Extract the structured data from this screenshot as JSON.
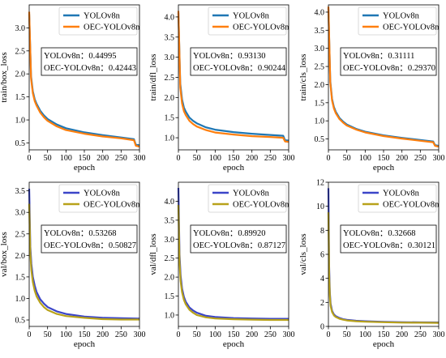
{
  "chart_data": [
    {
      "type": "line",
      "xlabel": "epoch",
      "ylabel": "train/box_loss",
      "xlim": [
        0,
        300
      ],
      "ylim": [
        0.35,
        3.5
      ],
      "xticks": [
        0,
        50,
        100,
        150,
        200,
        250,
        300
      ],
      "yticks": [
        0.5,
        1.0,
        1.5,
        2.0,
        2.5,
        3.0
      ],
      "yticks_text": [
        "0.5",
        "1.0",
        "1.5",
        "2.0",
        "2.5",
        "3.0"
      ],
      "legend_position": "top-right",
      "annotation": [
        "YOLOv8n：0.44995",
        "OEC-YOLOv8n：0.42443"
      ],
      "series": [
        {
          "name": "YOLOv8n",
          "color": "#1f77b4",
          "x": [
            0,
            5,
            10,
            15,
            20,
            30,
            40,
            50,
            75,
            100,
            150,
            200,
            250,
            285,
            290,
            300
          ],
          "y": [
            3.3,
            1.95,
            1.62,
            1.45,
            1.35,
            1.2,
            1.1,
            1.02,
            0.9,
            0.82,
            0.73,
            0.67,
            0.62,
            0.58,
            0.46,
            0.45
          ]
        },
        {
          "name": "OEC-YOLOv8n",
          "color": "#ff7f0e",
          "x": [
            0,
            5,
            10,
            15,
            20,
            30,
            40,
            50,
            75,
            100,
            150,
            200,
            250,
            285,
            290,
            300
          ],
          "y": [
            3.35,
            1.9,
            1.58,
            1.41,
            1.31,
            1.16,
            1.06,
            0.98,
            0.86,
            0.78,
            0.7,
            0.64,
            0.6,
            0.56,
            0.44,
            0.42
          ]
        }
      ]
    },
    {
      "type": "line",
      "xlabel": "epoch",
      "ylabel": "train/dfl_loss",
      "xlim": [
        0,
        300
      ],
      "ylim": [
        0.7,
        4.3
      ],
      "xticks": [
        0,
        50,
        100,
        150,
        200,
        250,
        300
      ],
      "yticks": [
        1.0,
        1.5,
        2.0,
        2.5,
        3.0,
        3.5,
        4.0
      ],
      "yticks_text": [
        "1.0",
        "1.5",
        "2.0",
        "2.5",
        "3.0",
        "3.5",
        "4.0"
      ],
      "legend_position": "top-right",
      "annotation": [
        "YOLOv8n：0.93130",
        "OEC-YOLOv8n：0.90244"
      ],
      "series": [
        {
          "name": "YOLOv8n",
          "color": "#1f77b4",
          "x": [
            0,
            5,
            10,
            15,
            20,
            30,
            40,
            50,
            75,
            100,
            150,
            200,
            250,
            285,
            290,
            300
          ],
          "y": [
            4.1,
            2.35,
            1.95,
            1.75,
            1.65,
            1.5,
            1.42,
            1.36,
            1.26,
            1.2,
            1.14,
            1.1,
            1.07,
            1.05,
            0.94,
            0.93
          ]
        },
        {
          "name": "OEC-YOLOv8n",
          "color": "#ff7f0e",
          "x": [
            0,
            5,
            10,
            15,
            20,
            30,
            40,
            50,
            75,
            100,
            150,
            200,
            250,
            285,
            290,
            300
          ],
          "y": [
            4.15,
            2.25,
            1.85,
            1.66,
            1.56,
            1.42,
            1.34,
            1.28,
            1.19,
            1.13,
            1.08,
            1.04,
            1.02,
            1.0,
            0.91,
            0.9
          ]
        }
      ]
    },
    {
      "type": "line",
      "xlabel": "epoch",
      "ylabel": "train/cls_loss",
      "xlim": [
        0,
        300
      ],
      "ylim": [
        0.2,
        4.2
      ],
      "xticks": [
        0,
        50,
        100,
        150,
        200,
        250,
        300
      ],
      "yticks": [
        0.5,
        1.0,
        1.5,
        2.0,
        2.5,
        3.0,
        3.5,
        4.0
      ],
      "yticks_text": [
        "0.5",
        "1.0",
        "1.5",
        "2.0",
        "2.5",
        "3.0",
        "3.5",
        "4.0"
      ],
      "legend_position": "top-right",
      "annotation": [
        "YOLOv8n：0.31111",
        "OEC-YOLOv8n：0.29370"
      ],
      "series": [
        {
          "name": "YOLOv8n",
          "color": "#1f77b4",
          "x": [
            0,
            5,
            10,
            15,
            20,
            30,
            40,
            50,
            75,
            100,
            150,
            200,
            250,
            285,
            290,
            300
          ],
          "y": [
            4.1,
            2.1,
            1.6,
            1.38,
            1.25,
            1.08,
            0.98,
            0.9,
            0.78,
            0.7,
            0.6,
            0.53,
            0.47,
            0.43,
            0.33,
            0.31
          ]
        },
        {
          "name": "OEC-YOLOv8n",
          "color": "#ff7f0e",
          "x": [
            0,
            5,
            10,
            15,
            20,
            30,
            40,
            50,
            75,
            100,
            150,
            200,
            250,
            285,
            290,
            300
          ],
          "y": [
            4.15,
            2.05,
            1.56,
            1.34,
            1.21,
            1.05,
            0.95,
            0.87,
            0.76,
            0.68,
            0.58,
            0.51,
            0.45,
            0.41,
            0.31,
            0.29
          ]
        }
      ]
    },
    {
      "type": "line",
      "xlabel": "epoch",
      "ylabel": "val/box_loss",
      "xlim": [
        0,
        300
      ],
      "ylim": [
        0.35,
        3.7
      ],
      "xticks": [
        0,
        50,
        100,
        150,
        200,
        250,
        300
      ],
      "yticks": [
        0.5,
        1.0,
        1.5,
        2.0,
        2.5,
        3.0,
        3.5
      ],
      "yticks_text": [
        "0.5",
        "1.0",
        "1.5",
        "2.0",
        "2.5",
        "3.0",
        "3.5"
      ],
      "legend_position": "top-right",
      "annotation": [
        "YOLOv8n：0.53268",
        "OEC-YOLOv8n：0.50827"
      ],
      "series": [
        {
          "name": "YOLOv8n",
          "color": "#3b45c8",
          "x": [
            0,
            3,
            6,
            10,
            15,
            20,
            30,
            40,
            50,
            75,
            100,
            150,
            200,
            250,
            300
          ],
          "y": [
            3.55,
            2.2,
            1.8,
            1.5,
            1.3,
            1.15,
            0.98,
            0.88,
            0.8,
            0.7,
            0.64,
            0.58,
            0.55,
            0.54,
            0.53
          ]
        },
        {
          "name": "OEC-YOLOv8n",
          "color": "#b8a21a",
          "x": [
            0,
            3,
            6,
            10,
            15,
            20,
            30,
            40,
            50,
            75,
            100,
            150,
            200,
            250,
            300
          ],
          "y": [
            3.2,
            2.05,
            1.65,
            1.38,
            1.18,
            1.05,
            0.9,
            0.8,
            0.73,
            0.64,
            0.59,
            0.55,
            0.52,
            0.51,
            0.51
          ]
        }
      ]
    },
    {
      "type": "line",
      "xlabel": "epoch",
      "ylabel": "val/dfl_loss",
      "xlim": [
        0,
        300
      ],
      "ylim": [
        0.7,
        4.5
      ],
      "xticks": [
        0,
        50,
        100,
        150,
        200,
        250,
        300
      ],
      "yticks": [
        1.0,
        1.5,
        2.0,
        2.5,
        3.0,
        3.5,
        4.0
      ],
      "yticks_text": [
        "1.0",
        "1.5",
        "2.0",
        "2.5",
        "3.0",
        "3.5",
        "4.0"
      ],
      "legend_position": "top-right",
      "annotation": [
        "YOLOv8n：0.89920",
        "OEC-YOLOv8n：0.87127"
      ],
      "series": [
        {
          "name": "YOLOv8n",
          "color": "#3b45c8",
          "x": [
            0,
            3,
            6,
            10,
            15,
            20,
            30,
            40,
            50,
            75,
            100,
            150,
            200,
            250,
            300
          ],
          "y": [
            4.35,
            2.6,
            2.05,
            1.7,
            1.48,
            1.35,
            1.2,
            1.12,
            1.06,
            0.98,
            0.95,
            0.92,
            0.91,
            0.9,
            0.9
          ]
        },
        {
          "name": "OEC-YOLOv8n",
          "color": "#b8a21a",
          "x": [
            0,
            3,
            6,
            10,
            15,
            20,
            30,
            40,
            50,
            75,
            100,
            150,
            200,
            250,
            300
          ],
          "y": [
            3.9,
            2.4,
            1.9,
            1.6,
            1.4,
            1.28,
            1.14,
            1.06,
            1.0,
            0.94,
            0.91,
            0.89,
            0.88,
            0.87,
            0.87
          ]
        }
      ]
    },
    {
      "type": "line",
      "xlabel": "epoch",
      "ylabel": "val/cls_loss",
      "xlim": [
        0,
        300
      ],
      "ylim": [
        0,
        12
      ],
      "xticks": [
        0,
        50,
        100,
        150,
        200,
        250,
        300
      ],
      "yticks": [
        0,
        2,
        4,
        6,
        8,
        10,
        12
      ],
      "yticks_text": [
        "0",
        "2",
        "4",
        "6",
        "8",
        "10",
        "12"
      ],
      "legend_position": "top-right",
      "annotation": [
        "YOLOv8n：0.32668",
        "OEC-YOLOv8n：0.30121"
      ],
      "series": [
        {
          "name": "YOLOv8n",
          "color": "#3b45c8",
          "x": [
            0,
            2,
            4,
            6,
            10,
            15,
            20,
            30,
            40,
            50,
            75,
            100,
            150,
            200,
            250,
            300
          ],
          "y": [
            11.5,
            5.0,
            2.8,
            1.9,
            1.3,
            1.0,
            0.85,
            0.7,
            0.6,
            0.55,
            0.47,
            0.43,
            0.38,
            0.35,
            0.34,
            0.33
          ]
        },
        {
          "name": "OEC-YOLOv8n",
          "color": "#b8a21a",
          "x": [
            0,
            2,
            4,
            6,
            10,
            15,
            20,
            30,
            40,
            50,
            75,
            100,
            150,
            200,
            250,
            300
          ],
          "y": [
            9.5,
            4.3,
            2.5,
            1.7,
            1.2,
            0.92,
            0.78,
            0.64,
            0.56,
            0.5,
            0.43,
            0.39,
            0.35,
            0.32,
            0.31,
            0.3
          ]
        }
      ]
    }
  ]
}
